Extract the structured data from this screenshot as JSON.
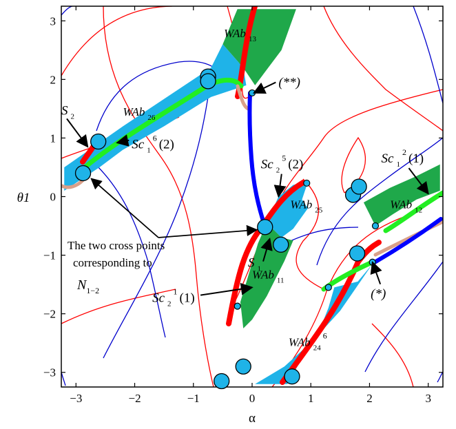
{
  "chart_data": {
    "type": "scatter",
    "title": "",
    "xlabel": "α",
    "ylabel": "θ1",
    "xlim": [
      -3.25,
      3.25
    ],
    "ylim": [
      -3.25,
      3.25
    ],
    "xticks": [
      {
        "v": -3,
        "label": "−3"
      },
      {
        "v": -2,
        "label": "−2"
      },
      {
        "v": -1,
        "label": "−1"
      },
      {
        "v": 0,
        "label": "0"
      },
      {
        "v": 1,
        "label": "1"
      },
      {
        "v": 2,
        "label": "2"
      },
      {
        "v": 3,
        "label": "3"
      }
    ],
    "yticks": [
      {
        "v": 3,
        "label": "3"
      },
      {
        "v": 2,
        "label": "2"
      },
      {
        "v": 1,
        "label": "1"
      },
      {
        "v": 0,
        "label": "0"
      },
      {
        "v": -1,
        "label": "−1"
      },
      {
        "v": -2,
        "label": "−2"
      },
      {
        "v": -3,
        "label": "−3"
      }
    ],
    "grid": false,
    "colors": {
      "red": "#ff0000",
      "blue": "#0000ff",
      "green_dark": "#1fa84a",
      "green_light": "#22ee22",
      "cyan": "#1fb3e8",
      "salmon": "#d9a08a"
    },
    "regions": [
      {
        "name": "WAb13",
        "points": [
          [
            -0.25,
            3.2
          ],
          [
            0.75,
            3.2
          ],
          [
            0.5,
            2.5
          ],
          [
            0.05,
            1.9
          ],
          [
            -0.15,
            2.2
          ],
          [
            -0.5,
            2.6
          ]
        ]
      },
      {
        "name": "WAb26",
        "points": [
          [
            -3.2,
            0.1
          ],
          [
            -3.2,
            0.5
          ],
          [
            -2.2,
            1.2
          ],
          [
            -1.3,
            1.8
          ],
          [
            -0.7,
            2.2
          ],
          [
            -0.5,
            2.6
          ],
          [
            -0.15,
            2.2
          ],
          [
            -0.1,
            1.9
          ],
          [
            -0.7,
            1.7
          ],
          [
            -1.5,
            1.2
          ],
          [
            -2.2,
            0.8
          ],
          [
            -2.6,
            0.5
          ]
        ]
      },
      {
        "name": "WAb25",
        "points": [
          [
            0.25,
            -0.45
          ],
          [
            0.45,
            0.0
          ],
          [
            0.7,
            0.2
          ],
          [
            0.95,
            0.25
          ],
          [
            0.85,
            -0.05
          ],
          [
            0.95,
            -0.2
          ],
          [
            0.7,
            -0.55
          ],
          [
            0.5,
            -0.7
          ]
        ]
      },
      {
        "name": "WAb11",
        "points": [
          [
            -0.2,
            -1.8
          ],
          [
            0.1,
            -0.8
          ],
          [
            0.25,
            -0.45
          ],
          [
            0.5,
            -0.7
          ],
          [
            0.7,
            -0.75
          ],
          [
            0.55,
            -1.1
          ],
          [
            0.25,
            -1.7
          ],
          [
            0.0,
            -2.1
          ],
          [
            -0.15,
            -2.25
          ]
        ]
      },
      {
        "name": "WAb12",
        "points": [
          [
            1.9,
            -0.1
          ],
          [
            2.35,
            0.15
          ],
          [
            2.8,
            0.35
          ],
          [
            3.2,
            0.55
          ],
          [
            3.2,
            0.1
          ],
          [
            2.8,
            -0.05
          ],
          [
            2.4,
            -0.3
          ],
          [
            2.1,
            -0.5
          ]
        ]
      },
      {
        "name": "WAb24",
        "points": [
          [
            0.05,
            -3.2
          ],
          [
            0.55,
            -2.9
          ],
          [
            1.1,
            -2.4
          ],
          [
            1.3,
            -1.9
          ],
          [
            1.4,
            -1.55
          ],
          [
            1.8,
            -1.45
          ],
          [
            2.05,
            -1.15
          ],
          [
            1.5,
            -1.95
          ],
          [
            1.0,
            -2.5
          ],
          [
            0.6,
            -3.2
          ]
        ]
      }
    ],
    "annotations": [
      {
        "text": "WAb",
        "sub": "13",
        "x": -0.48,
        "y": 2.72,
        "arrow": null
      },
      {
        "text": "WAb",
        "sub": "26",
        "x": -2.2,
        "y": 1.38,
        "arrow": null
      },
      {
        "text": "WAb",
        "sub": "25",
        "x": 0.65,
        "y": -0.2,
        "arrow": null
      },
      {
        "text": "WAb",
        "sub": "11",
        "x": 0.0,
        "y": -1.4,
        "arrow": null
      },
      {
        "text": "WAb",
        "sub": "12",
        "x": 2.35,
        "y": -0.2,
        "arrow": null
      },
      {
        "text": "WAb",
        "sub": "24",
        "sup": "6",
        "x": 0.62,
        "y": -2.55,
        "arrow": null
      },
      {
        "text": "(**)",
        "x": 0.45,
        "y": 1.88,
        "arrow": [
          0.03,
          1.77
        ]
      },
      {
        "text": "(*)",
        "x": 2.02,
        "y": -1.73,
        "arrow": [
          2.05,
          -1.12
        ]
      },
      {
        "text": "S",
        "sub": "2",
        "x": -3.25,
        "y": 1.4,
        "arrow": [
          -2.8,
          0.85
        ]
      },
      {
        "text": "S",
        "sub": "1",
        "x": -0.07,
        "y": -1.2,
        "arrow": [
          0.3,
          -0.72
        ]
      },
      {
        "text": "Sc",
        "sub": "1",
        "sup": "6",
        "paren": "(2)",
        "x": -2.05,
        "y": 0.82,
        "arrow": [
          -2.3,
          0.92
        ]
      },
      {
        "text": "Sc",
        "sub": "2",
        "sup": "5",
        "paren": "(2)",
        "x": 0.15,
        "y": 0.48,
        "arrow": [
          0.45,
          0.0
        ]
      },
      {
        "text": "Sc",
        "sub": "1",
        "sup": "2",
        "paren": "(1)",
        "x": 2.2,
        "y": 0.58,
        "arrow": [
          3.0,
          0.05
        ]
      },
      {
        "text": "Sc",
        "sub": "2",
        "sup": "1",
        "paren": "(1)",
        "x": -1.7,
        "y": -1.8,
        "arrow": [
          0.0,
          -1.55
        ]
      }
    ],
    "note_lines": [
      "The two cross points",
      "corresponding to"
    ],
    "note_symbol": {
      "text": "N",
      "sub": "1−2"
    },
    "large_points": [
      [
        -2.62,
        0.94
      ],
      [
        -2.88,
        0.4
      ],
      [
        -0.75,
        2.05
      ],
      [
        -0.75,
        1.97
      ],
      [
        0.22,
        -0.52
      ],
      [
        0.49,
        -0.82
      ],
      [
        1.72,
        0.03
      ],
      [
        1.82,
        0.17
      ],
      [
        1.79,
        -0.97
      ],
      [
        0.68,
        -3.07
      ],
      [
        -0.52,
        -3.15
      ],
      [
        -0.15,
        -2.9
      ]
    ],
    "small_points": [
      [
        0.0,
        1.77
      ],
      [
        0.93,
        0.23
      ],
      [
        -0.25,
        -1.87
      ],
      [
        2.1,
        -0.5
      ],
      [
        2.05,
        -1.12
      ],
      [
        1.3,
        -1.55
      ]
    ]
  }
}
